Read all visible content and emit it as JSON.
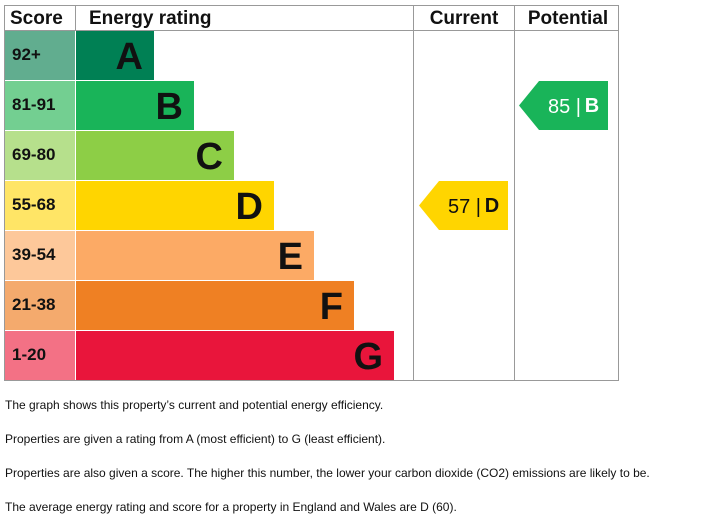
{
  "chart_data": {
    "type": "table",
    "headers": {
      "score": "Score",
      "rating": "Energy rating",
      "current": "Current",
      "potential": "Potential"
    },
    "bands": [
      {
        "range": "92+",
        "letter": "A",
        "color": "#008054",
        "score_bg": "#61ad8f"
      },
      {
        "range": "81-91",
        "letter": "B",
        "color": "#19b459",
        "score_bg": "#73cf91"
      },
      {
        "range": "69-80",
        "letter": "C",
        "color": "#8dce46",
        "score_bg": "#b6e08c"
      },
      {
        "range": "55-68",
        "letter": "D",
        "color": "#ffd500",
        "score_bg": "#ffe566"
      },
      {
        "range": "39-54",
        "letter": "E",
        "color": "#fcaa65",
        "score_bg": "#fdc89a"
      },
      {
        "range": "21-38",
        "letter": "F",
        "color": "#ef8023",
        "score_bg": "#f4aa6d"
      },
      {
        "range": "1-20",
        "letter": "G",
        "color": "#e9153b",
        "score_bg": "#f37185"
      }
    ],
    "current": {
      "score": 57,
      "letter": "D",
      "label": "57 |",
      "color": "#ffd500"
    },
    "potential": {
      "score": 85,
      "letter": "B",
      "label": "85 |",
      "color": "#19b459"
    }
  },
  "notes": [
    "The graph shows this property’s current and potential energy efficiency.",
    "Properties are given a rating from A (most efficient) to G (least efficient).",
    "Properties are also given a score. The higher this number, the lower your carbon dioxide (CO2) emissions are likely to be.",
    "The average energy rating and score for a property in England and Wales are D (60)."
  ]
}
